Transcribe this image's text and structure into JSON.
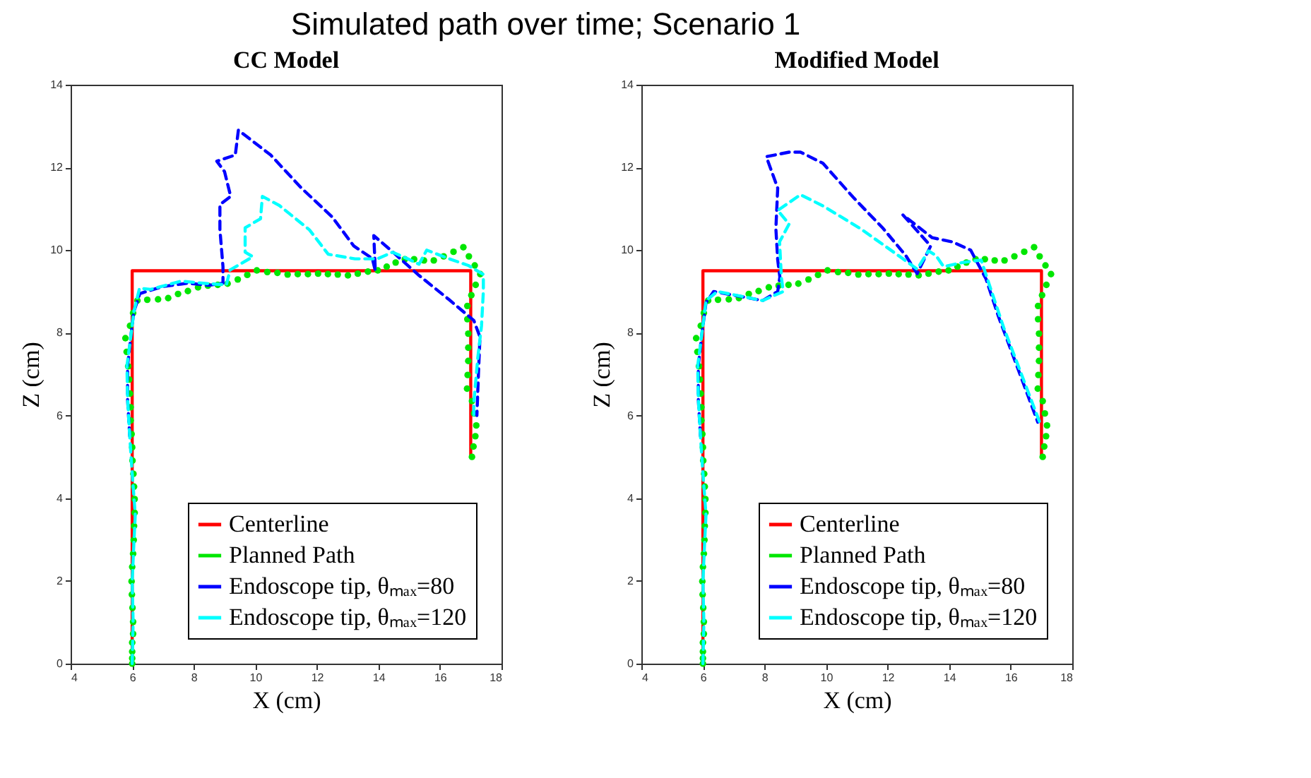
{
  "chart_data": [
    {
      "type": "line",
      "title": "CC Model",
      "annotations": [
        "Simulated path over time; Scenario 1"
      ],
      "xlabel": "X (cm)",
      "ylabel": "Z (cm)",
      "xlim": [
        4,
        18
      ],
      "ylim": [
        0,
        14
      ],
      "xticks": [
        4,
        6,
        8,
        10,
        12,
        14,
        16,
        18
      ],
      "yticks": [
        0,
        2,
        4,
        6,
        8,
        10,
        12,
        14
      ],
      "grid": false,
      "legend": "bottom right",
      "series": [
        {
          "name": "Centerline",
          "type": "line",
          "line_style": "solid",
          "color": "#ff0000",
          "x": [
            6,
            6,
            17,
            17
          ],
          "values": [
            0,
            9.5,
            9.5,
            5
          ]
        },
        {
          "name": "Planned Path",
          "type": "scatter",
          "marker": "circle",
          "color": "#00e600",
          "x": [
            6,
            6,
            6,
            6,
            6.03,
            6.03,
            6.01,
            5.99,
            5.98,
            6,
            6.03,
            6.05,
            6.06,
            6.08,
            6.08,
            6.06,
            6.04,
            6.01,
            6,
            5.98,
            5.95,
            5.95,
            5.93,
            5.9,
            5.87,
            5.82,
            5.78,
            5.93,
            6.03,
            6.17,
            6.49,
            6.84,
            7.17,
            7.49,
            7.81,
            8.14,
            8.46,
            8.78,
            9.1,
            9.43,
            9.74,
            10.05,
            10.39,
            10.72,
            11.05,
            11.38,
            11.71,
            12.04,
            12.36,
            12.68,
            13.01,
            13.33,
            13.66,
            13.98,
            14.27,
            14.56,
            14.86,
            15.16,
            15.48,
            15.8,
            16.12,
            16.44,
            16.76,
            16.94,
            17.13,
            17.31,
            17.16,
            17.02,
            16.89,
            16.89,
            16.92,
            16.92,
            16.92,
            16.9,
            16.88,
            17.04,
            17.11,
            17.18,
            17.15,
            17.09,
            17.04
          ],
          "values": [
            0,
            0.13,
            0.29,
            0.51,
            0.72,
            1.01,
            1.35,
            1.67,
            1.99,
            2.34,
            2.66,
            2.99,
            3.33,
            3.65,
            3.98,
            4.28,
            4.59,
            4.91,
            5.23,
            5.55,
            5.88,
            6.2,
            6.53,
            6.87,
            7.19,
            7.54,
            7.87,
            8.17,
            8.48,
            8.78,
            8.8,
            8.81,
            8.84,
            8.94,
            9.01,
            9.1,
            9.14,
            9.16,
            9.19,
            9.29,
            9.4,
            9.51,
            9.47,
            9.45,
            9.41,
            9.42,
            9.42,
            9.43,
            9.42,
            9.41,
            9.39,
            9.43,
            9.48,
            9.51,
            9.6,
            9.7,
            9.78,
            9.78,
            9.75,
            9.75,
            9.85,
            9.96,
            10.07,
            9.85,
            9.63,
            9.42,
            9.16,
            8.91,
            8.65,
            8.33,
            7.98,
            7.64,
            7.32,
            6.98,
            6.65,
            6.35,
            6.05,
            5.76,
            5.5,
            5.25,
            5
          ]
        },
        {
          "name": "Endoscope tip, θₘₐₓ=80",
          "type": "line",
          "line_style": "dashed",
          "color": "#0000ff",
          "x": [
            5.92,
            5.85,
            5.85,
            5.97,
            6.05,
            6.25,
            7,
            7.8,
            8.5,
            8.95,
            8.95,
            8.85,
            8.85,
            9.2,
            9,
            8.75,
            9.35,
            9.45,
            10.5,
            11.5,
            12.5,
            13.2,
            13.8,
            13.9,
            13.85,
            14.4,
            15.3,
            16.3,
            17.1,
            17.3,
            17.25,
            17.2
          ],
          "values": [
            5.5,
            6.4,
            7.2,
            8,
            8.5,
            8.95,
            9.12,
            9.2,
            9.15,
            9.2,
            9.6,
            10.5,
            11.1,
            11.3,
            11.9,
            12.15,
            12.3,
            12.9,
            12.3,
            11.5,
            10.8,
            10.1,
            9.8,
            9.5,
            10.35,
            10,
            9.4,
            8.8,
            8.3,
            7.9,
            7,
            6
          ]
        },
        {
          "name": "Endoscope tip, θₘₐₓ=120",
          "type": "line",
          "line_style": "dashed",
          "color": "#00ffff",
          "x": [
            6,
            6.03,
            6,
            6.06,
            6.1,
            6,
            5.92,
            5.85,
            5.83,
            5.97,
            6.05,
            6.24,
            6.6,
            7.59,
            8.45,
            9.06,
            9.18,
            9.92,
            9.67,
            9.67,
            10.17,
            10.23,
            10.78,
            11.76,
            12.37,
            13.24,
            13.97,
            14.46,
            14.95,
            15.32,
            15.57,
            16.3,
            16.92,
            17.41,
            17.41,
            17.35,
            17.23,
            17.1,
            17.1
          ],
          "values": [
            0,
            1,
            2,
            3,
            3.6,
            4.6,
            5.5,
            6.4,
            7.2,
            8,
            8.5,
            9.08,
            9.05,
            9.25,
            9.19,
            9.16,
            9.52,
            9.84,
            9.95,
            10.54,
            10.76,
            11.3,
            11.08,
            10.49,
            9.9,
            9.79,
            9.79,
            9.95,
            9.79,
            9.66,
            10,
            9.79,
            9.63,
            9.41,
            9,
            8.17,
            7.4,
            6.3,
            6
          ]
        }
      ]
    },
    {
      "type": "line",
      "title": "Modified Model",
      "xlabel": "X (cm)",
      "ylabel": "Z (cm)",
      "xlim": [
        4,
        18
      ],
      "ylim": [
        0,
        14
      ],
      "xticks": [
        4,
        6,
        8,
        10,
        12,
        14,
        16,
        18
      ],
      "yticks": [
        0,
        2,
        4,
        6,
        8,
        10,
        12,
        14
      ],
      "grid": false,
      "legend": "bottom right",
      "series": [
        {
          "name": "Centerline",
          "type": "line",
          "line_style": "solid",
          "color": "#ff0000",
          "x": [
            6,
            6,
            17,
            17
          ],
          "values": [
            0,
            9.5,
            9.5,
            5
          ]
        },
        {
          "name": "Planned Path",
          "type": "scatter",
          "marker": "circle",
          "color": "#00e600",
          "x": [
            6,
            6,
            6,
            6,
            6.03,
            6.03,
            6.01,
            5.99,
            5.98,
            6,
            6.03,
            6.05,
            6.06,
            6.08,
            6.08,
            6.06,
            6.04,
            6.01,
            6,
            5.98,
            5.95,
            5.95,
            5.93,
            5.9,
            5.87,
            5.82,
            5.78,
            5.93,
            6.03,
            6.17,
            6.49,
            6.84,
            7.17,
            7.49,
            7.81,
            8.14,
            8.46,
            8.78,
            9.1,
            9.43,
            9.74,
            10.05,
            10.39,
            10.72,
            11.05,
            11.38,
            11.71,
            12.04,
            12.36,
            12.68,
            13.01,
            13.33,
            13.66,
            13.98,
            14.27,
            14.56,
            14.86,
            15.16,
            15.48,
            15.8,
            16.12,
            16.44,
            16.76,
            16.94,
            17.13,
            17.31,
            17.16,
            17.02,
            16.89,
            16.89,
            16.92,
            16.92,
            16.92,
            16.9,
            16.88,
            17.04,
            17.11,
            17.18,
            17.15,
            17.09,
            17.04
          ],
          "values": [
            0,
            0.13,
            0.29,
            0.51,
            0.72,
            1.01,
            1.35,
            1.67,
            1.99,
            2.34,
            2.66,
            2.99,
            3.33,
            3.65,
            3.98,
            4.28,
            4.59,
            4.91,
            5.23,
            5.55,
            5.88,
            6.2,
            6.53,
            6.87,
            7.19,
            7.54,
            7.87,
            8.17,
            8.48,
            8.78,
            8.8,
            8.81,
            8.84,
            8.94,
            9.01,
            9.1,
            9.14,
            9.16,
            9.19,
            9.29,
            9.4,
            9.51,
            9.47,
            9.45,
            9.41,
            9.42,
            9.42,
            9.43,
            9.42,
            9.41,
            9.39,
            9.43,
            9.48,
            9.51,
            9.6,
            9.7,
            9.78,
            9.78,
            9.75,
            9.75,
            9.85,
            9.96,
            10.07,
            9.85,
            9.63,
            9.42,
            9.16,
            8.91,
            8.65,
            8.33,
            7.98,
            7.64,
            7.32,
            6.98,
            6.65,
            6.35,
            6.05,
            5.76,
            5.5,
            5.25,
            5
          ]
        },
        {
          "name": "Endoscope tip, θₘₐₓ=80",
          "type": "line",
          "line_style": "dashed",
          "color": "#0000ff",
          "x": [
            5.92,
            5.85,
            5.85,
            5.97,
            6.1,
            6.35,
            7.94,
            8.43,
            8.5,
            8.43,
            8.37,
            8.43,
            8.06,
            8.8,
            9.17,
            9.9,
            10.88,
            11.86,
            12.59,
            12.96,
            13.4,
            12.5,
            13.45,
            14.1,
            14.7,
            15.2,
            15.6,
            16.88
          ],
          "values": [
            5.5,
            6.4,
            7.2,
            8,
            8.73,
            9,
            8.78,
            9,
            9.35,
            9.76,
            10.52,
            11.5,
            12.26,
            12.37,
            12.37,
            12.1,
            11.28,
            10.52,
            9.87,
            9.43,
            10.1,
            10.85,
            10.3,
            10.2,
            10,
            9.3,
            8.4,
            5.84
          ]
        },
        {
          "name": "Endoscope tip, θₘₐₓ=120",
          "type": "line",
          "line_style": "dashed",
          "color": "#00ffff",
          "x": [
            6,
            6.03,
            6,
            6.06,
            6.1,
            6,
            5.92,
            5.85,
            5.83,
            5.97,
            6.1,
            6.47,
            7.94,
            8.61,
            8.55,
            8.49,
            8.8,
            8.43,
            9.17,
            9.9,
            11.12,
            12.35,
            12.96,
            13.33,
            13.57,
            13.82,
            14.43,
            15.04,
            15.28,
            15.77,
            16.94
          ],
          "values": [
            0,
            1,
            2,
            3,
            3.6,
            4.6,
            5.5,
            6.4,
            7.2,
            8,
            8.78,
            9,
            8.78,
            9,
            9.33,
            10.2,
            10.63,
            10.96,
            11.34,
            11.07,
            10.52,
            9.87,
            9.54,
            9.98,
            9.87,
            9.6,
            9.7,
            9.76,
            9.22,
            8.13,
            5.84
          ]
        }
      ]
    }
  ]
}
